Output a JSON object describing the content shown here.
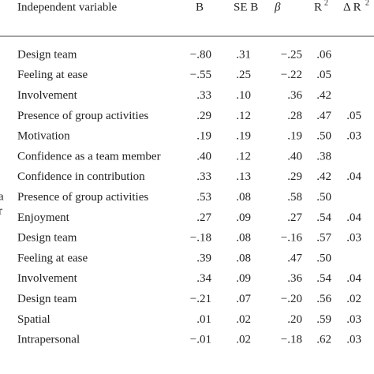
{
  "table": {
    "header": [
      "Independent variable",
      "B",
      "SE B",
      "β",
      "R",
      "Δ R"
    ],
    "superscripts": {
      "r2": "2",
      "dr2": "2"
    },
    "rows": [
      [
        "Design team",
        "−.80",
        ".31",
        "−.25",
        ".06",
        null
      ],
      [
        "Feeling at ease",
        "−.55",
        ".25",
        "−.22",
        ".05",
        null
      ],
      [
        "Involvement",
        ".33",
        ".10",
        ".36",
        ".42",
        null
      ],
      [
        "Presence of group activities",
        ".29",
        ".12",
        ".28",
        ".47",
        ".05"
      ],
      [
        "Motivation",
        ".19",
        ".19",
        ".19",
        ".50",
        ".03"
      ],
      [
        "Confidence as a team member",
        ".40",
        ".12",
        ".40",
        ".38",
        null
      ],
      [
        "Confidence in contribution",
        ".33",
        ".13",
        ".29",
        ".42",
        ".04"
      ],
      [
        "Presence of group activities",
        ".53",
        ".08",
        ".58",
        ".50",
        null
      ],
      [
        "Enjoyment",
        ".27",
        ".09",
        ".27",
        ".54",
        ".04"
      ],
      [
        "Design team",
        "−.18",
        ".08",
        "−.16",
        ".57",
        ".03"
      ],
      [
        "Feeling at ease",
        ".39",
        ".08",
        ".47",
        ".50",
        null
      ],
      [
        "Involvement",
        ".34",
        ".09",
        ".36",
        ".54",
        ".04"
      ],
      [
        "Design team",
        "−.21",
        ".07",
        "−.20",
        ".56",
        ".02"
      ],
      [
        "Spatial",
        ".01",
        ".02",
        ".20",
        ".59",
        ".03"
      ],
      [
        "Intrapersonal",
        "−.01",
        ".02",
        "−.18",
        ".62",
        ".03"
      ]
    ],
    "left_fragments": [
      "a",
      "r"
    ]
  }
}
